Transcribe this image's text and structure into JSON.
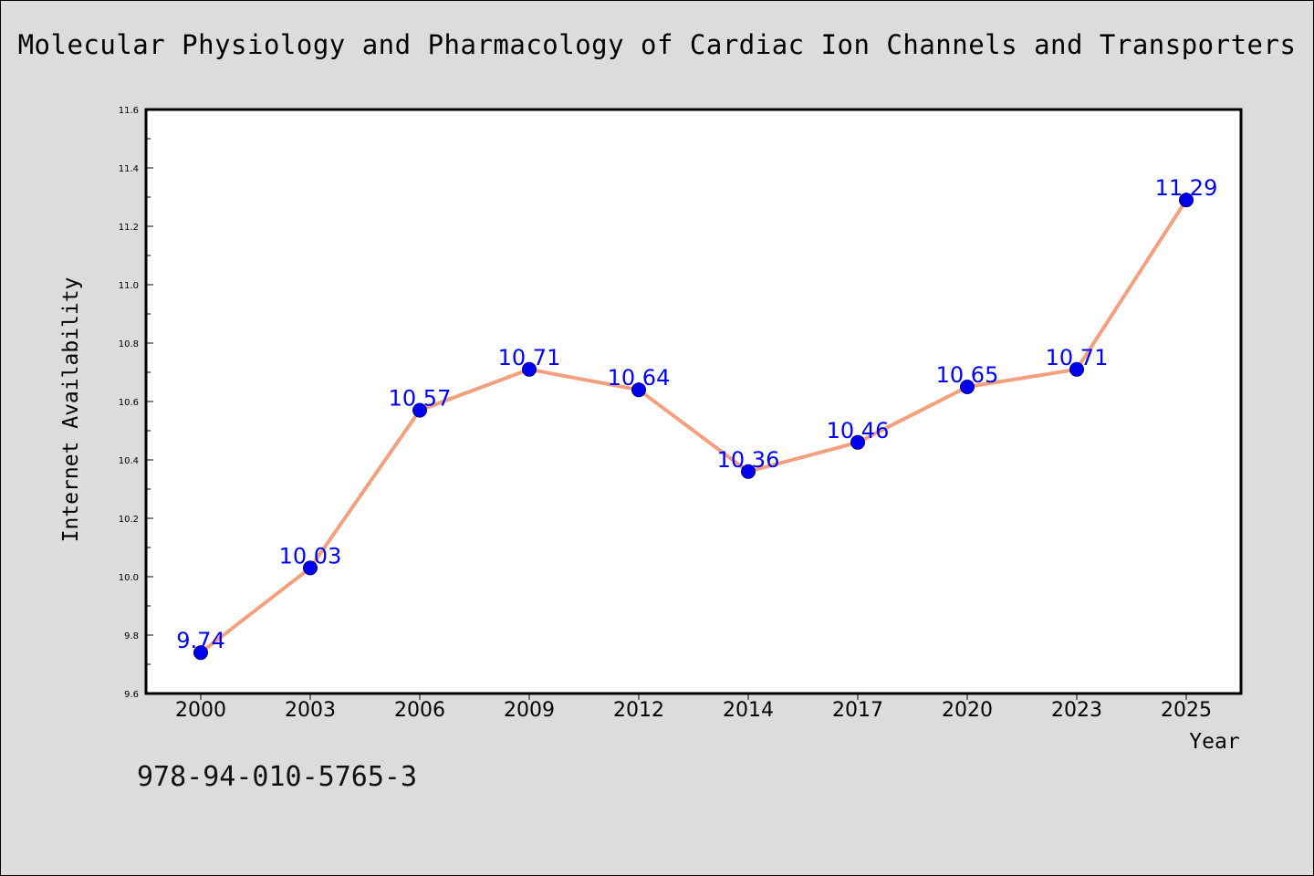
{
  "page": {
    "title": "Molecular Physiology and Pharmacology of Cardiac Ion Channels and Transporters",
    "isbn": "978-94-010-5765-3"
  },
  "colors": {
    "background": "#dcdcdc",
    "plot_background": "#ffffff",
    "line": "#f4a07e",
    "marker_fill": "#0000ee",
    "marker_edge": "#000080",
    "data_label": "#0000ff"
  },
  "chart_data": {
    "type": "line",
    "title": "Molecular Physiology and Pharmacology of Cardiac Ion Channels and Transporters",
    "xlabel": "Year",
    "ylabel": "Internet Availability",
    "categories": [
      "2000",
      "2003",
      "2006",
      "2009",
      "2012",
      "2014",
      "2017",
      "2020",
      "2023",
      "2025"
    ],
    "series": [
      {
        "values": [
          9.74,
          10.03,
          10.57,
          10.71,
          10.64,
          10.36,
          10.46,
          10.65,
          10.71,
          11.29
        ],
        "data_labels": [
          "9.74",
          "10.03",
          "10.57",
          "10.71",
          "10.64",
          "10.36",
          "10.46",
          "10.65",
          "10.71",
          "11.29"
        ]
      }
    ],
    "ylim": [
      9.6,
      11.6
    ],
    "yticks": [
      "9.6",
      "9.8",
      "10.0",
      "10.2",
      "10.4",
      "10.6",
      "10.8",
      "11.0",
      "11.2",
      "11.4",
      "11.6"
    ],
    "grid": false,
    "legend": "none"
  }
}
